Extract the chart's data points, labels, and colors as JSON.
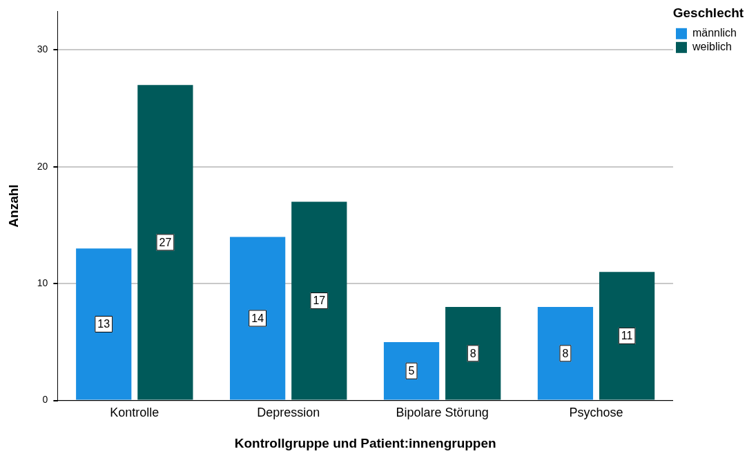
{
  "chart_data": {
    "type": "bar",
    "xlabel": "Kontrollgruppe und Patient:innengruppen",
    "ylabel": "Anzahl",
    "legend_title": "Geschlecht",
    "categories": [
      "Kontrolle",
      "Depression",
      "Bipolare Störung",
      "Psychose"
    ],
    "series": [
      {
        "name": "männlich",
        "color": "#1a8fe3",
        "values": [
          13,
          14,
          5,
          8
        ]
      },
      {
        "name": "weiblich",
        "color": "#005a5a",
        "values": [
          27,
          17,
          8,
          11
        ]
      }
    ],
    "ylim": [
      0,
      33.3
    ],
    "yticks": [
      0,
      10,
      20,
      30
    ],
    "grid": "y",
    "legend": "top right",
    "data_labels": true
  }
}
